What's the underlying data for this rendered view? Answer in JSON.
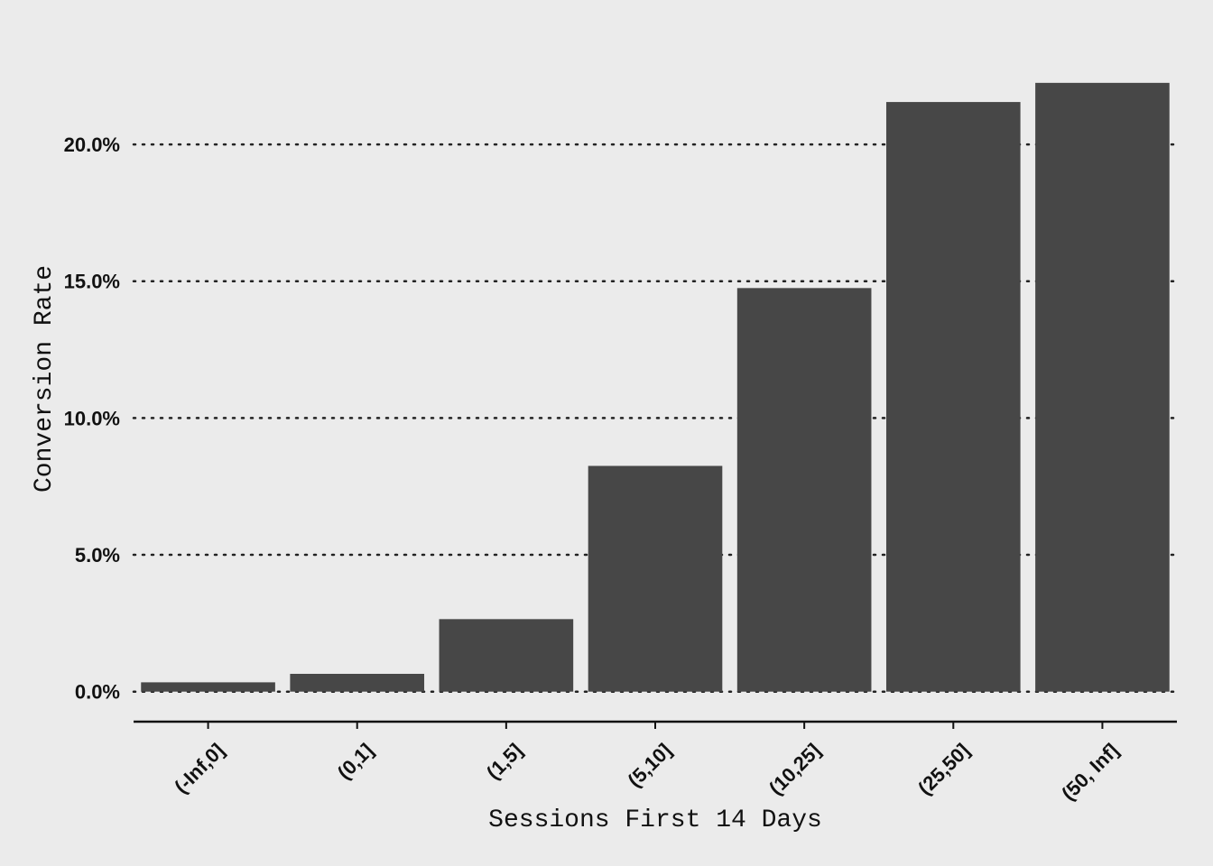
{
  "chart_data": {
    "type": "bar",
    "title": "",
    "xlabel": "Sessions First 14 Days",
    "ylabel": "Conversion Rate",
    "categories": [
      "(-Inf,0]",
      "(0,1]",
      "(1,5]",
      "(5,10]",
      "(10,25]",
      "(25,50]",
      "(50, Inf]"
    ],
    "values": [
      0.34,
      0.65,
      2.65,
      8.25,
      14.75,
      21.55,
      22.25
    ],
    "y_unit": "percent",
    "ylim": [
      -0.9,
      23.3
    ],
    "yticks": [
      0,
      5,
      10,
      15,
      20
    ],
    "ytick_labels": [
      "0.0%",
      "5.0%",
      "10.0%",
      "15.0%",
      "20.0%"
    ],
    "grid": "horizontal-dotted",
    "legend": "none",
    "colors": {
      "bar": "#474747",
      "background": "#ebebeb",
      "text": "#111111"
    }
  }
}
